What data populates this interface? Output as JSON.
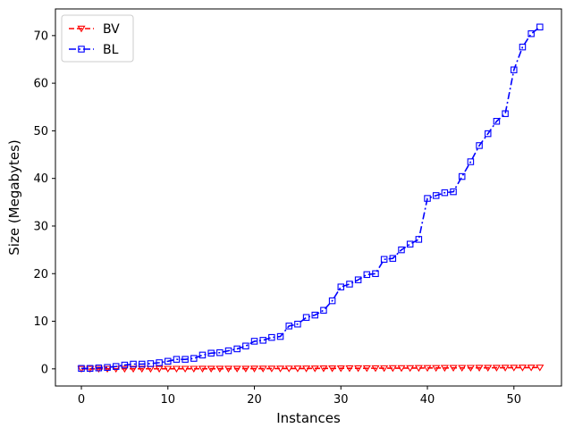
{
  "chart_data": {
    "type": "line",
    "title": "",
    "xlabel": "Instances",
    "ylabel": "Size (Megabytes)",
    "xlim": [
      -3,
      55.5
    ],
    "ylim": [
      -3.6,
      75.6
    ],
    "xticks": [
      0,
      10,
      20,
      30,
      40,
      50
    ],
    "yticks": [
      0,
      10,
      20,
      30,
      40,
      50,
      60,
      70
    ],
    "grid": false,
    "legend_position": "top-left",
    "series": [
      {
        "name": "BV",
        "color": "#ff0000",
        "line_style": "dashed",
        "marker": "triangle-down-icon",
        "x": [
          0,
          1,
          2,
          3,
          4,
          5,
          6,
          7,
          8,
          9,
          10,
          11,
          12,
          13,
          14,
          15,
          16,
          17,
          18,
          19,
          20,
          21,
          22,
          23,
          24,
          25,
          26,
          27,
          28,
          29,
          30,
          31,
          32,
          33,
          34,
          35,
          36,
          37,
          38,
          39,
          40,
          41,
          42,
          43,
          44,
          45,
          46,
          47,
          48,
          49,
          50,
          51,
          52,
          53
        ],
        "values": [
          0.0,
          0.0,
          0.0,
          0.0,
          0.01,
          0.01,
          0.01,
          0.01,
          0.01,
          0.01,
          0.02,
          0.02,
          0.02,
          0.02,
          0.03,
          0.03,
          0.03,
          0.03,
          0.04,
          0.04,
          0.05,
          0.05,
          0.06,
          0.06,
          0.07,
          0.08,
          0.08,
          0.09,
          0.1,
          0.1,
          0.11,
          0.12,
          0.12,
          0.13,
          0.13,
          0.14,
          0.15,
          0.15,
          0.16,
          0.17,
          0.18,
          0.18,
          0.19,
          0.2,
          0.2,
          0.21,
          0.22,
          0.22,
          0.23,
          0.24,
          0.25,
          0.26,
          0.27,
          0.28
        ]
      },
      {
        "name": "BL",
        "color": "#0000ff",
        "line_style": "dashdot",
        "marker": "square-icon",
        "x": [
          0,
          1,
          2,
          3,
          4,
          5,
          6,
          7,
          8,
          9,
          10,
          11,
          12,
          13,
          14,
          15,
          16,
          17,
          18,
          19,
          20,
          21,
          22,
          23,
          24,
          25,
          26,
          27,
          28,
          29,
          30,
          31,
          32,
          33,
          34,
          35,
          36,
          37,
          38,
          39,
          40,
          41,
          42,
          43,
          44,
          45,
          46,
          47,
          48,
          49,
          50,
          51,
          52,
          53
        ],
        "values": [
          0.1,
          0.1,
          0.2,
          0.3,
          0.5,
          0.8,
          1.0,
          1.0,
          1.1,
          1.3,
          1.6,
          2.0,
          2.0,
          2.2,
          2.9,
          3.3,
          3.4,
          3.8,
          4.2,
          4.8,
          5.8,
          6.0,
          6.6,
          6.8,
          9.0,
          9.4,
          10.8,
          11.3,
          12.3,
          14.3,
          17.2,
          17.8,
          18.7,
          19.8,
          20.0,
          23.0,
          23.2,
          25.0,
          26.2,
          27.2,
          35.8,
          36.4,
          37.0,
          37.2,
          40.4,
          43.5,
          46.9,
          49.4,
          52.0,
          53.6,
          62.8,
          67.6,
          70.4,
          71.8
        ]
      }
    ]
  }
}
